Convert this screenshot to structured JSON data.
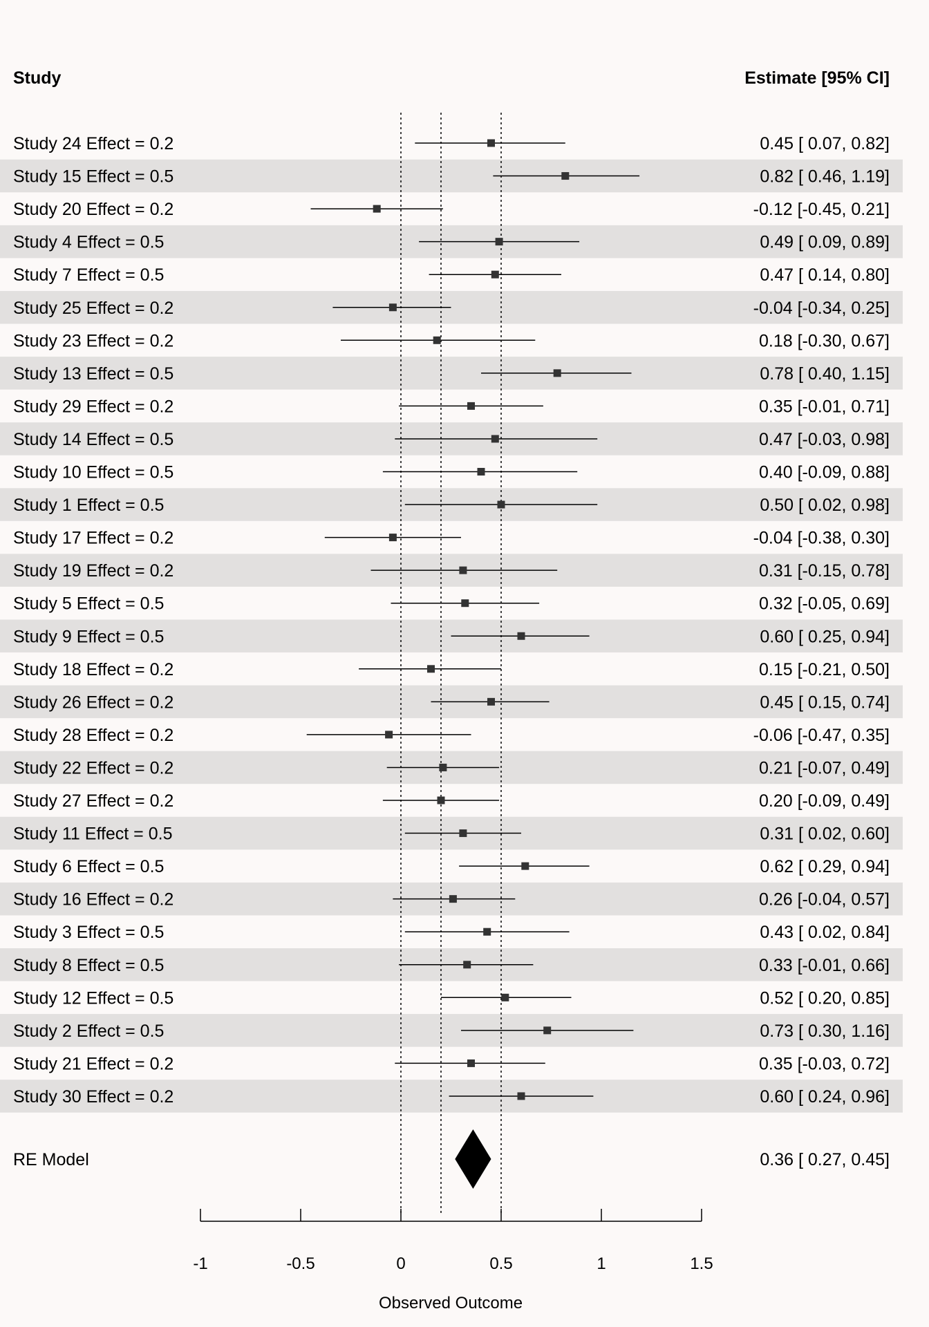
{
  "headers": {
    "study": "Study",
    "estimate": "Estimate [95% CI]"
  },
  "chart_data": {
    "type": "forest",
    "xlabel": "Observed Outcome",
    "xlim": [
      -1,
      1.5
    ],
    "xticks": [
      -1,
      -0.5,
      0,
      0.5,
      1,
      1.5
    ],
    "xtick_labels": [
      "-1",
      "-0.5",
      "0",
      "0.5",
      "1",
      "1.5"
    ],
    "reference_lines": [
      0,
      0.2,
      0.5
    ],
    "studies": [
      {
        "label": "Study 24 Effect = 0.2",
        "estimate": 0.45,
        "lower": 0.07,
        "upper": 0.82,
        "text": "0.45 [ 0.07, 0.82]"
      },
      {
        "label": "Study 15 Effect = 0.5",
        "estimate": 0.82,
        "lower": 0.46,
        "upper": 1.19,
        "text": "0.82 [ 0.46, 1.19]"
      },
      {
        "label": "Study 20 Effect = 0.2",
        "estimate": -0.12,
        "lower": -0.45,
        "upper": 0.21,
        "text": "-0.12 [-0.45, 0.21]"
      },
      {
        "label": "Study 4 Effect = 0.5",
        "estimate": 0.49,
        "lower": 0.09,
        "upper": 0.89,
        "text": "0.49 [ 0.09, 0.89]"
      },
      {
        "label": "Study 7 Effect = 0.5",
        "estimate": 0.47,
        "lower": 0.14,
        "upper": 0.8,
        "text": "0.47 [ 0.14, 0.80]"
      },
      {
        "label": "Study 25 Effect = 0.2",
        "estimate": -0.04,
        "lower": -0.34,
        "upper": 0.25,
        "text": "-0.04 [-0.34, 0.25]"
      },
      {
        "label": "Study 23 Effect = 0.2",
        "estimate": 0.18,
        "lower": -0.3,
        "upper": 0.67,
        "text": "0.18 [-0.30, 0.67]"
      },
      {
        "label": "Study 13 Effect = 0.5",
        "estimate": 0.78,
        "lower": 0.4,
        "upper": 1.15,
        "text": "0.78 [ 0.40, 1.15]"
      },
      {
        "label": "Study 29 Effect = 0.2",
        "estimate": 0.35,
        "lower": -0.01,
        "upper": 0.71,
        "text": "0.35 [-0.01, 0.71]"
      },
      {
        "label": "Study 14 Effect = 0.5",
        "estimate": 0.47,
        "lower": -0.03,
        "upper": 0.98,
        "text": "0.47 [-0.03, 0.98]"
      },
      {
        "label": "Study 10 Effect = 0.5",
        "estimate": 0.4,
        "lower": -0.09,
        "upper": 0.88,
        "text": "0.40 [-0.09, 0.88]"
      },
      {
        "label": "Study 1 Effect = 0.5",
        "estimate": 0.5,
        "lower": 0.02,
        "upper": 0.98,
        "text": "0.50 [ 0.02, 0.98]"
      },
      {
        "label": "Study 17 Effect = 0.2",
        "estimate": -0.04,
        "lower": -0.38,
        "upper": 0.3,
        "text": "-0.04 [-0.38, 0.30]"
      },
      {
        "label": "Study 19 Effect = 0.2",
        "estimate": 0.31,
        "lower": -0.15,
        "upper": 0.78,
        "text": "0.31 [-0.15, 0.78]"
      },
      {
        "label": "Study 5 Effect = 0.5",
        "estimate": 0.32,
        "lower": -0.05,
        "upper": 0.69,
        "text": "0.32 [-0.05, 0.69]"
      },
      {
        "label": "Study 9 Effect = 0.5",
        "estimate": 0.6,
        "lower": 0.25,
        "upper": 0.94,
        "text": "0.60 [ 0.25, 0.94]"
      },
      {
        "label": "Study 18 Effect = 0.2",
        "estimate": 0.15,
        "lower": -0.21,
        "upper": 0.5,
        "text": "0.15 [-0.21, 0.50]"
      },
      {
        "label": "Study 26 Effect = 0.2",
        "estimate": 0.45,
        "lower": 0.15,
        "upper": 0.74,
        "text": "0.45 [ 0.15, 0.74]"
      },
      {
        "label": "Study 28 Effect = 0.2",
        "estimate": -0.06,
        "lower": -0.47,
        "upper": 0.35,
        "text": "-0.06 [-0.47, 0.35]"
      },
      {
        "label": "Study 22 Effect = 0.2",
        "estimate": 0.21,
        "lower": -0.07,
        "upper": 0.49,
        "text": "0.21 [-0.07, 0.49]"
      },
      {
        "label": "Study 27 Effect = 0.2",
        "estimate": 0.2,
        "lower": -0.09,
        "upper": 0.49,
        "text": "0.20 [-0.09, 0.49]"
      },
      {
        "label": "Study 11 Effect = 0.5",
        "estimate": 0.31,
        "lower": 0.02,
        "upper": 0.6,
        "text": "0.31 [ 0.02, 0.60]"
      },
      {
        "label": "Study 6 Effect = 0.5",
        "estimate": 0.62,
        "lower": 0.29,
        "upper": 0.94,
        "text": "0.62 [ 0.29, 0.94]"
      },
      {
        "label": "Study 16 Effect = 0.2",
        "estimate": 0.26,
        "lower": -0.04,
        "upper": 0.57,
        "text": "0.26 [-0.04, 0.57]"
      },
      {
        "label": "Study 3 Effect = 0.5",
        "estimate": 0.43,
        "lower": 0.02,
        "upper": 0.84,
        "text": "0.43 [ 0.02, 0.84]"
      },
      {
        "label": "Study 8 Effect = 0.5",
        "estimate": 0.33,
        "lower": -0.01,
        "upper": 0.66,
        "text": "0.33 [-0.01, 0.66]"
      },
      {
        "label": "Study 12 Effect = 0.5",
        "estimate": 0.52,
        "lower": 0.2,
        "upper": 0.85,
        "text": "0.52 [ 0.20, 0.85]"
      },
      {
        "label": "Study 2 Effect = 0.5",
        "estimate": 0.73,
        "lower": 0.3,
        "upper": 1.16,
        "text": "0.73 [ 0.30, 1.16]"
      },
      {
        "label": "Study 21 Effect = 0.2",
        "estimate": 0.35,
        "lower": -0.03,
        "upper": 0.72,
        "text": "0.35 [-0.03, 0.72]"
      },
      {
        "label": "Study 30 Effect = 0.2",
        "estimate": 0.6,
        "lower": 0.24,
        "upper": 0.96,
        "text": "0.60 [ 0.24, 0.96]"
      }
    ],
    "summary": {
      "label": "RE Model",
      "estimate": 0.36,
      "lower": 0.27,
      "upper": 0.45,
      "text": "0.36 [ 0.27, 0.45]"
    },
    "colors": {
      "background": "#fcf9f8",
      "stripe": "#e2e0df",
      "marker": "#333333",
      "line": "#000000"
    }
  }
}
